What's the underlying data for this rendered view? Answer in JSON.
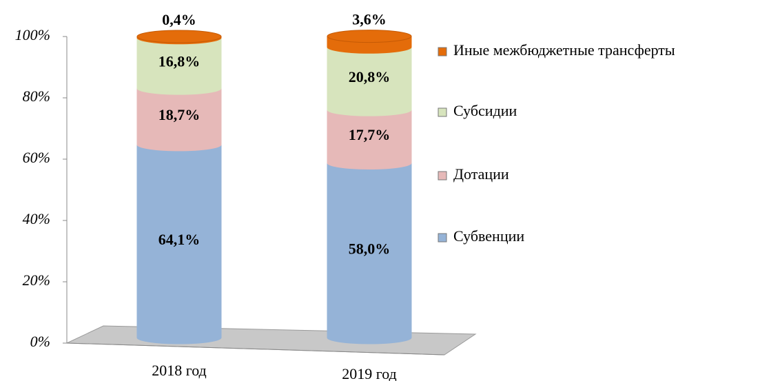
{
  "chart_data": {
    "type": "stacked_cylinder",
    "categories": [
      "2018 год",
      "2019 год"
    ],
    "series": [
      {
        "name": "Субвенции",
        "color": "#95b3d7",
        "values": [
          64.1,
          58.0
        ],
        "value_labels": [
          "64,1%",
          "58,0%"
        ]
      },
      {
        "name": "Дотации",
        "color": "#e6b9b8",
        "values": [
          18.7,
          17.7
        ],
        "value_labels": [
          "18,7%",
          "17,7%"
        ]
      },
      {
        "name": "Субсидии",
        "color": "#d7e4bd",
        "values": [
          16.8,
          20.8
        ],
        "value_labels": [
          "16,8%",
          "20,8%"
        ]
      },
      {
        "name": "Иные межбюджетные трансферты",
        "color": "#e46c0a",
        "values": [
          0.4,
          3.6
        ],
        "value_labels": [
          "0,4%",
          "3,6%"
        ]
      }
    ],
    "ylim": [
      0,
      100
    ],
    "yticks": [
      {
        "value": 0,
        "label": "0%"
      },
      {
        "value": 20,
        "label": "20%"
      },
      {
        "value": 40,
        "label": "40%"
      },
      {
        "value": 60,
        "label": "60%"
      },
      {
        "value": 80,
        "label": "80%"
      },
      {
        "value": 100,
        "label": "100%"
      }
    ],
    "legend": "right"
  }
}
